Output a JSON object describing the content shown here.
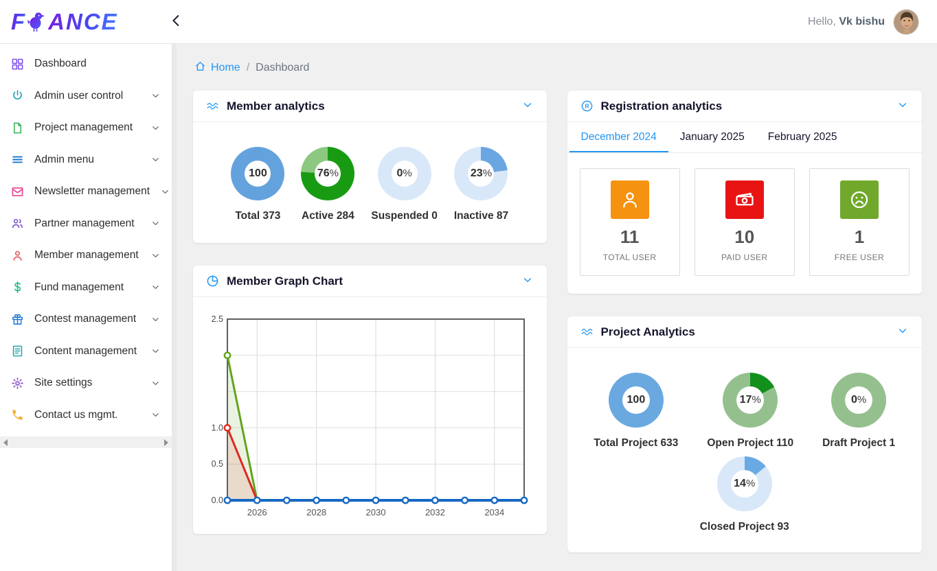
{
  "header": {
    "logo_prefix": "F",
    "logo_suffix": "ANCE",
    "greeting": "Hello,",
    "username": "Vk bishu"
  },
  "breadcrumb": {
    "home_label": "Home",
    "separator": "/",
    "current": "Dashboard"
  },
  "sidebar": {
    "items": [
      {
        "label": "Dashboard",
        "icon": "grid-icon",
        "color": "#7b4ff0",
        "chevron": false
      },
      {
        "label": "Admin user control",
        "icon": "power-icon",
        "color": "#17a2b8",
        "chevron": true
      },
      {
        "label": "Project management",
        "icon": "file-icon",
        "color": "#35b558",
        "chevron": true
      },
      {
        "label": "Admin menu",
        "icon": "menu-icon",
        "color": "#1976d2",
        "chevron": true
      },
      {
        "label": "Newsletter management",
        "icon": "mail-icon",
        "color": "#e83e8c",
        "chevron": true
      },
      {
        "label": "Partner management",
        "icon": "users-icon",
        "color": "#7a52c7",
        "chevron": true
      },
      {
        "label": "Member management",
        "icon": "user-icon",
        "color": "#e05252",
        "chevron": true
      },
      {
        "label": "Fund management",
        "icon": "dollar-icon",
        "color": "#1db88a",
        "chevron": true
      },
      {
        "label": "Contest management",
        "icon": "gift-icon",
        "color": "#1976d2",
        "chevron": true
      },
      {
        "label": "Content management",
        "icon": "doc-icon",
        "color": "#2aa8a8",
        "chevron": true
      },
      {
        "label": "Site settings",
        "icon": "gear-icon",
        "color": "#8a4fc8",
        "chevron": true
      },
      {
        "label": "Contact us mgmt.",
        "icon": "phone-icon",
        "color": "#f2b233",
        "chevron": true
      }
    ]
  },
  "member_analytics": {
    "title": "Member analytics",
    "donuts": [
      {
        "value": "100",
        "suffix": "",
        "label": "Total 373",
        "percent": 100,
        "fg": "#64a2de",
        "bg": "#64a2de"
      },
      {
        "value": "76",
        "suffix": "%",
        "label": "Active 284",
        "percent": 76,
        "fg": "#189b12",
        "bg": "#8cc87f"
      },
      {
        "value": "0",
        "suffix": "%",
        "label": "Suspended 0",
        "percent": 0,
        "fg": "#64a2de",
        "bg": "#d9e8f8"
      },
      {
        "value": "23",
        "suffix": "%",
        "label": "Inactive 87",
        "percent": 23,
        "fg": "#6aa7e2",
        "bg": "#d9e8f8"
      }
    ]
  },
  "registration_analytics": {
    "title": "Registration analytics",
    "tabs": [
      {
        "label": "December 2024",
        "active": true
      },
      {
        "label": "January 2025",
        "active": false
      },
      {
        "label": "February 2025",
        "active": false
      }
    ],
    "stats": [
      {
        "value": "11",
        "label": "TOTAL USER",
        "icon": "person-icon",
        "color": "#f5920f"
      },
      {
        "value": "10",
        "label": "PAID USER",
        "icon": "banknote-icon",
        "color": "#e81414"
      },
      {
        "value": "1",
        "label": "FREE USER",
        "icon": "sad-face-icon",
        "color": "#6fa82b"
      }
    ]
  },
  "member_graph": {
    "title": "Member Graph Chart",
    "chart_data": {
      "type": "line",
      "x": [
        2025,
        2026,
        2027,
        2028,
        2029,
        2030,
        2031,
        2032,
        2033,
        2034,
        2035
      ],
      "series": [
        {
          "name": "series-green",
          "color": "#62a41d",
          "fill": "rgba(124,179,66,0.16)",
          "values": [
            2,
            0,
            0,
            0,
            0,
            0,
            0,
            0,
            0,
            0,
            0
          ]
        },
        {
          "name": "series-red",
          "color": "#e0281e",
          "fill": "rgba(229,57,53,0.13)",
          "values": [
            1,
            0,
            0,
            0,
            0,
            0,
            0,
            0,
            0,
            0,
            0
          ]
        },
        {
          "name": "series-blue",
          "color": "#1668c4",
          "fill": "none",
          "values": [
            0,
            0,
            0,
            0,
            0,
            0,
            0,
            0,
            0,
            0,
            0
          ]
        }
      ],
      "ylim": [
        0,
        2.5
      ],
      "y_ticks": [
        [
          0,
          "0.0"
        ],
        [
          0.5,
          "0.5"
        ],
        [
          1,
          "1.0"
        ],
        [
          2.5,
          "2.5"
        ]
      ],
      "y_gridlines": [
        0.5,
        1.0,
        1.5,
        2.0
      ],
      "x_tick_years": [
        2026,
        2028,
        2030,
        2032,
        2034
      ],
      "title": "",
      "xlabel": "",
      "ylabel": "",
      "grid": true,
      "legend": false
    }
  },
  "project_analytics": {
    "title": "Project Analytics",
    "donuts": [
      {
        "value": "100",
        "suffix": "",
        "label": "Total Project 633",
        "percent": 100,
        "fg": "#6aa9e0",
        "bg": "#6aa9e0"
      },
      {
        "value": "17",
        "suffix": "%",
        "label": "Open Project 110",
        "percent": 17,
        "fg": "#12901b",
        "bg": "#94c08e"
      },
      {
        "value": "0",
        "suffix": "%",
        "label": "Draft Project 1",
        "percent": 0,
        "fg": "#94c08e",
        "bg": "#94c08e"
      },
      {
        "value": "14",
        "suffix": "%",
        "label": "Closed Project 93",
        "percent": 14,
        "fg": "#6aaae4",
        "bg": "#d8e8f8"
      }
    ]
  }
}
